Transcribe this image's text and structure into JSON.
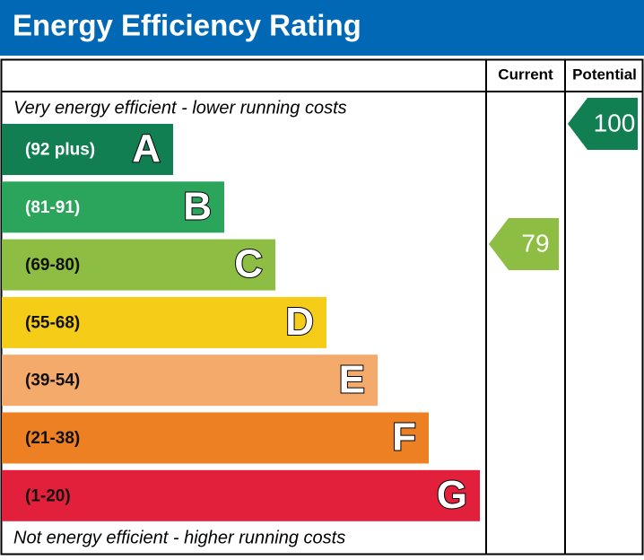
{
  "header": {
    "title": "Energy Efficiency Rating"
  },
  "columns": {
    "current": "Current",
    "potential": "Potential"
  },
  "top_note": "Very energy efficient - lower running costs",
  "bottom_note": "Not energy efficient - higher running costs",
  "bands": [
    {
      "range": "(92 plus)",
      "letter": "A",
      "color": "#127f53",
      "text_color": "#ffffff"
    },
    {
      "range": "(81-91)",
      "letter": "B",
      "color": "#2ba55c",
      "text_color": "#ffffff"
    },
    {
      "range": "(69-80)",
      "letter": "C",
      "color": "#8dbd42",
      "text_color": "#111111"
    },
    {
      "range": "(55-68)",
      "letter": "D",
      "color": "#f5cc18",
      "text_color": "#111111"
    },
    {
      "range": "(39-54)",
      "letter": "E",
      "color": "#f3aa6a",
      "text_color": "#111111"
    },
    {
      "range": "(21-38)",
      "letter": "F",
      "color": "#ed8023",
      "text_color": "#111111"
    },
    {
      "range": "(1-20)",
      "letter": "G",
      "color": "#e3203c",
      "text_color": "#111111"
    }
  ],
  "current": 79,
  "potential": 100
}
